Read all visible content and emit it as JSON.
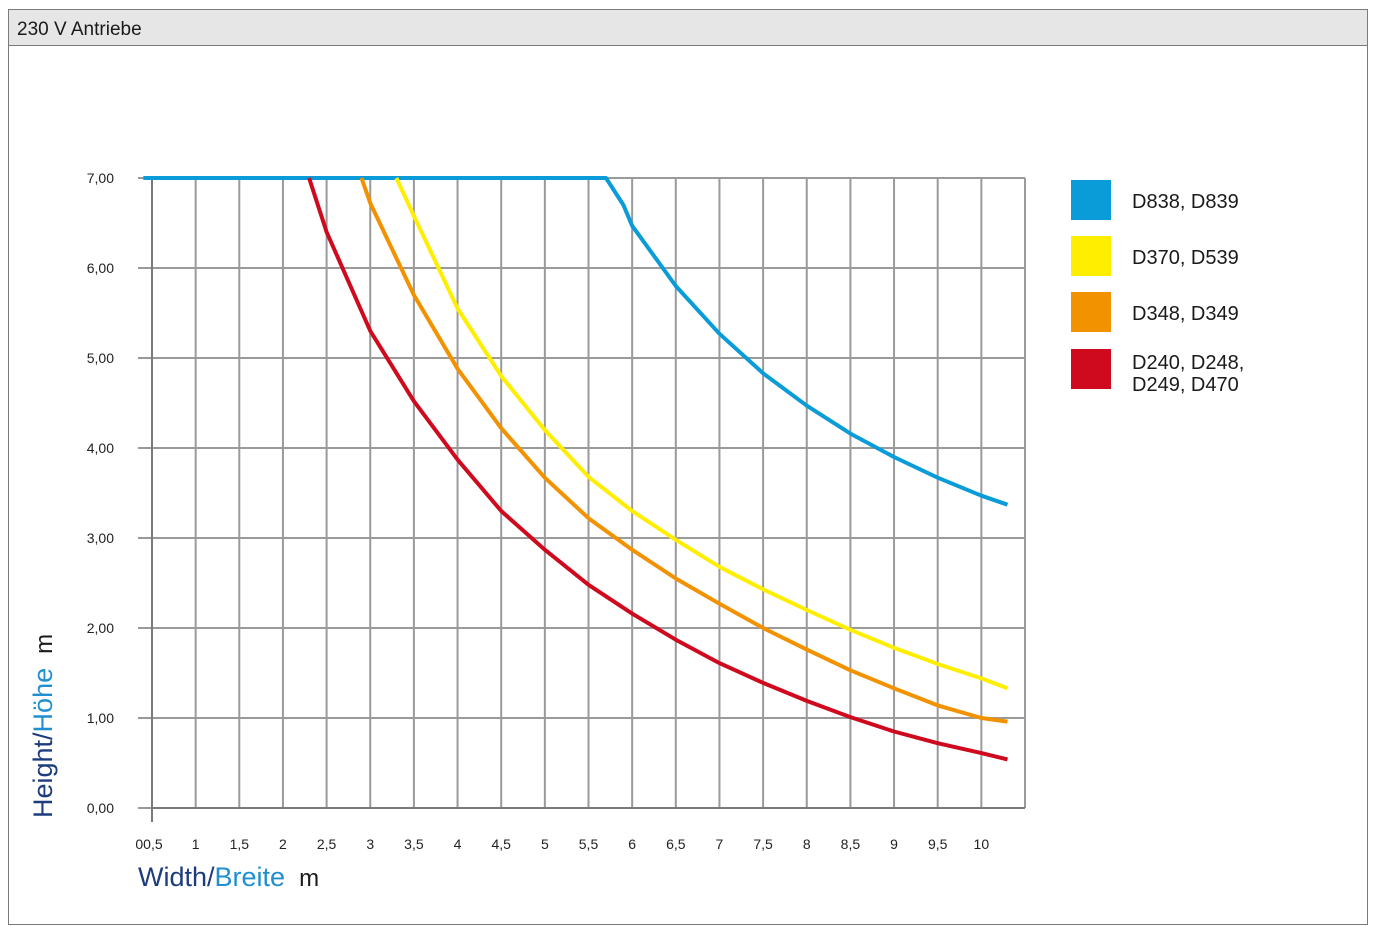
{
  "window": {
    "title": "230 V Antriebe"
  },
  "chart_data": {
    "type": "line",
    "xlabel": {
      "en": "Width",
      "sep": "/",
      "de": "Breite",
      "unit": "m"
    },
    "ylabel": {
      "en": "Height",
      "sep": "/",
      "de": "Höhe",
      "unit": "m"
    },
    "xlim": [
      0.5,
      10.5
    ],
    "ylim": [
      0,
      7
    ],
    "x_ticks": [
      0.5,
      1,
      1.5,
      2,
      2.5,
      3,
      3.5,
      4,
      4.5,
      5,
      5.5,
      6,
      6.5,
      7,
      7.5,
      8,
      8.5,
      9,
      9.5,
      10
    ],
    "x_tick_labels": [
      "00,5",
      "1",
      "1,5",
      "2",
      "2,5",
      "3",
      "3,5",
      "4",
      "4,5",
      "5",
      "5,5",
      "6",
      "6,5",
      "7",
      "7,5",
      "8",
      "8,5",
      "9",
      "9,5",
      "10"
    ],
    "y_ticks": [
      0,
      1,
      2,
      3,
      4,
      5,
      6,
      7
    ],
    "y_tick_labels": [
      "0,00",
      "1,00",
      "2,00",
      "3,00",
      "4,00",
      "5,00",
      "6,00",
      "7,00"
    ],
    "grid": true,
    "legend_position": "right",
    "series": [
      {
        "name": "D838, D839",
        "color": "#0a9cd8",
        "x": [
          0.4,
          5.7,
          5.9,
          6.0,
          6.5,
          7.0,
          7.5,
          8.0,
          8.5,
          9.0,
          9.5,
          10.0,
          10.3
        ],
        "y": [
          7.0,
          7.0,
          6.7,
          6.47,
          5.8,
          5.27,
          4.83,
          4.47,
          4.16,
          3.9,
          3.67,
          3.47,
          3.37
        ]
      },
      {
        "name": "D370, D539",
        "color": "#ffee00",
        "x": [
          3.3,
          3.5,
          4.0,
          4.5,
          5.0,
          5.5,
          6.0,
          6.5,
          7.0,
          7.5,
          8.0,
          8.5,
          9.0,
          9.5,
          10.0,
          10.3
        ],
        "y": [
          7.0,
          6.58,
          5.55,
          4.8,
          4.2,
          3.68,
          3.3,
          2.98,
          2.68,
          2.43,
          2.2,
          1.98,
          1.78,
          1.6,
          1.44,
          1.33
        ]
      },
      {
        "name": "D348, D349",
        "color": "#f39200",
        "x": [
          2.9,
          3.0,
          3.5,
          4.0,
          4.5,
          5.0,
          5.5,
          6.0,
          6.5,
          7.0,
          7.5,
          8.0,
          8.5,
          9.0,
          9.5,
          10.0,
          10.3
        ],
        "y": [
          7.0,
          6.72,
          5.7,
          4.88,
          4.22,
          3.67,
          3.22,
          2.87,
          2.55,
          2.27,
          2.0,
          1.76,
          1.53,
          1.33,
          1.14,
          1.0,
          0.96
        ]
      },
      {
        "name": "D240, D248,\nD249, D470",
        "name_lines": [
          "D240, D248,",
          "D249, D470"
        ],
        "color": "#cf0a1e",
        "x": [
          2.3,
          2.5,
          3.0,
          3.5,
          4.0,
          4.5,
          5.0,
          5.5,
          6.0,
          6.5,
          7.0,
          7.5,
          8.0,
          8.5,
          9.0,
          9.5,
          10.0,
          10.3
        ],
        "y": [
          7.0,
          6.4,
          5.3,
          4.52,
          3.87,
          3.3,
          2.87,
          2.48,
          2.16,
          1.87,
          1.61,
          1.39,
          1.19,
          1.01,
          0.85,
          0.72,
          0.61,
          0.54
        ]
      }
    ]
  },
  "colors": {
    "axis_label_dark": "#1d3c7e",
    "axis_label_light": "#1f8fd0",
    "grid": "#9a9a9a",
    "axis": "#7a7a7a"
  }
}
